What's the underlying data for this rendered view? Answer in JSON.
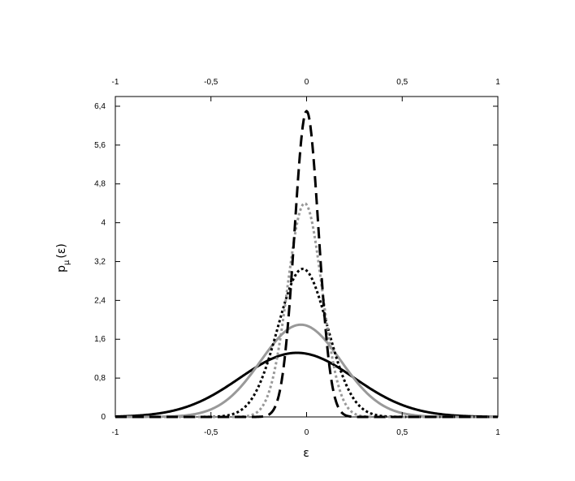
{
  "chart_data": {
    "type": "line",
    "title": "",
    "xlabel": "ε",
    "ylabel": {
      "main": "p",
      "subscript": "μ",
      "arg": "(ε)"
    },
    "xlim": [
      -1,
      1
    ],
    "ylim": [
      0,
      6.6
    ],
    "x_ticks": [
      -1,
      -0.5,
      0,
      0.5,
      1
    ],
    "x_tick_labels": [
      "-1",
      "-0,5",
      "0",
      "0,5",
      "1"
    ],
    "x2_ticks": [
      -1,
      -0.5,
      0,
      0.5,
      1
    ],
    "x2_tick_labels": [
      "-1",
      "-0,5",
      "0",
      "0,5",
      "1"
    ],
    "y_ticks": [
      0,
      0.8,
      1.6,
      2.4,
      3.2,
      4,
      4.8,
      5.6,
      6.4
    ],
    "y_tick_labels": [
      "0",
      "0,8",
      "1,6",
      "2,4",
      "3,2",
      "4",
      "4,8",
      "5,6",
      "6,4"
    ],
    "grid": false,
    "legend": "none",
    "series": [
      {
        "peak_x": -0.05,
        "peak_y": 1.32,
        "width": 0.3,
        "color": "#000000",
        "dash": "solid",
        "stroke_width": 3
      },
      {
        "peak_x": -0.03,
        "peak_y": 1.9,
        "width": 0.21,
        "color": "#999999",
        "dash": "solid",
        "stroke_width": 3
      },
      {
        "peak_x": -0.02,
        "peak_y": 3.05,
        "width": 0.13,
        "color": "#000000",
        "dash": "dotted",
        "stroke_width": 3
      },
      {
        "peak_x": -0.01,
        "peak_y": 4.4,
        "width": 0.09,
        "color": "#999999",
        "dash": "dotted",
        "stroke_width": 3
      },
      {
        "peak_x": 0.0,
        "peak_y": 6.3,
        "width": 0.063,
        "color": "#000000",
        "dash": "dashed",
        "stroke_width": 3
      }
    ]
  }
}
